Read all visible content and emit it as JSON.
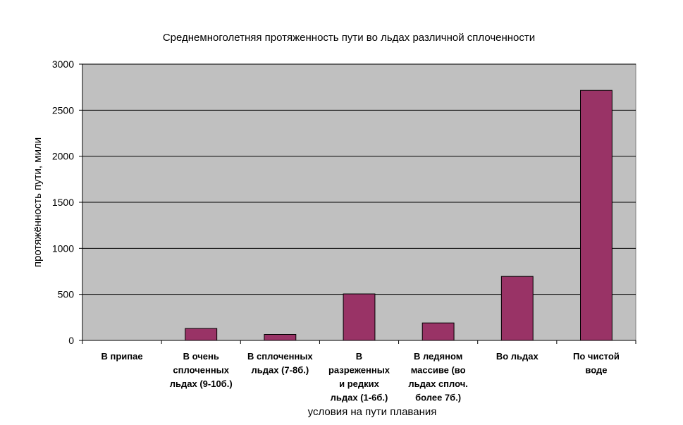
{
  "chart_data": {
    "type": "bar",
    "title": "Среднемноголетняя протяженность пути во льдах различной сплоченности",
    "xlabel": "условия на пути плавания",
    "ylabel": "протяжённость пути, мили",
    "ylim": [
      0,
      3000
    ],
    "yticks": [
      0,
      500,
      1000,
      1500,
      2000,
      2500,
      3000
    ],
    "grid": true,
    "categories": [
      [
        "В припае"
      ],
      [
        "В очень",
        "сплоченных",
        "льдах (9-10б.)"
      ],
      [
        "В сплоченных",
        "льдах (7-8б.)"
      ],
      [
        "В",
        "разреженных",
        "и редких",
        "льдах (1-6б.)"
      ],
      [
        "В ледяном",
        "массиве (во",
        "льдах сплоч.",
        "более 7б.)"
      ],
      [
        "Во льдах"
      ],
      [
        "По чистой",
        "воде"
      ]
    ],
    "values": [
      0,
      130,
      65,
      505,
      190,
      695,
      2715
    ],
    "colors": {
      "bar": "#993366",
      "plot_bg": "#c0c0c0",
      "grid": "#000000"
    }
  }
}
